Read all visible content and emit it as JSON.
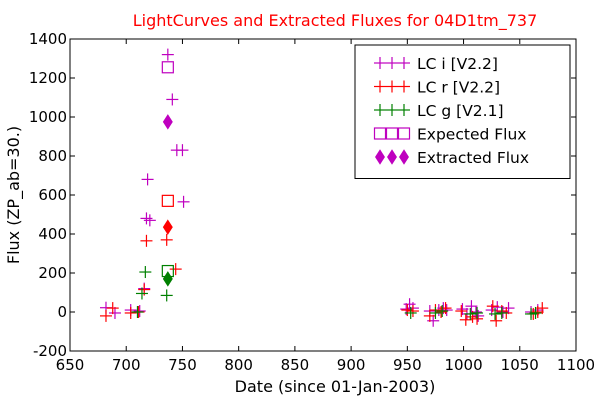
{
  "chart_data": {
    "type": "scatter",
    "title": "LightCurves and Extracted Fluxes for 04D1tm_737",
    "title_color": "#ff0000",
    "xlabel": "Date (since 01-Jan-2003)",
    "ylabel": "Flux (ZP_ab=30.)",
    "xlim": [
      650,
      1100
    ],
    "ylim": [
      -200,
      1400
    ],
    "x_ticks": [
      650,
      700,
      750,
      800,
      850,
      900,
      950,
      1000,
      1050,
      1100
    ],
    "y_ticks": [
      -200,
      0,
      200,
      400,
      600,
      800,
      1000,
      1200,
      1400
    ],
    "grid": false,
    "legend_position": "top-right",
    "series": [
      {
        "name": "LC i [V2.2]",
        "marker": "plus",
        "color": "#bf00bf",
        "points": [
          [
            682,
            22
          ],
          [
            690,
            -5
          ],
          [
            704,
            10
          ],
          [
            712,
            5
          ],
          [
            716,
            120
          ],
          [
            718,
            480
          ],
          [
            719,
            680
          ],
          [
            721,
            470
          ],
          [
            737,
            1320
          ],
          [
            741,
            1090
          ],
          [
            745,
            830
          ],
          [
            750,
            830
          ],
          [
            751,
            565
          ],
          [
            949,
            15
          ],
          [
            952,
            40
          ],
          [
            955,
            20
          ],
          [
            970,
            5
          ],
          [
            973,
            -45
          ],
          [
            978,
            10
          ],
          [
            982,
            20
          ],
          [
            985,
            10
          ],
          [
            999,
            15
          ],
          [
            1003,
            -10
          ],
          [
            1007,
            30
          ],
          [
            1011,
            0
          ],
          [
            1013,
            -20
          ],
          [
            1025,
            10
          ],
          [
            1030,
            25
          ],
          [
            1035,
            0
          ],
          [
            1040,
            20
          ],
          [
            1060,
            0
          ],
          [
            1066,
            10
          ]
        ]
      },
      {
        "name": "LC r [V2.2]",
        "marker": "plus",
        "color": "#ff0000",
        "points": [
          [
            682,
            -20
          ],
          [
            688,
            20
          ],
          [
            704,
            -5
          ],
          [
            711,
            0
          ],
          [
            716,
            115
          ],
          [
            718,
            365
          ],
          [
            736,
            370
          ],
          [
            744,
            220
          ],
          [
            950,
            10
          ],
          [
            955,
            5
          ],
          [
            970,
            -20
          ],
          [
            975,
            10
          ],
          [
            980,
            0
          ],
          [
            984,
            20
          ],
          [
            998,
            5
          ],
          [
            1002,
            -40
          ],
          [
            1008,
            -25
          ],
          [
            1012,
            -35
          ],
          [
            1026,
            30
          ],
          [
            1029,
            -45
          ],
          [
            1034,
            5
          ],
          [
            1038,
            -5
          ],
          [
            1062,
            -10
          ],
          [
            1066,
            0
          ],
          [
            1070,
            20
          ]
        ]
      },
      {
        "name": "LC g [V2.1]",
        "marker": "plus",
        "color": "#008000",
        "points": [
          [
            710,
            0
          ],
          [
            714,
            95
          ],
          [
            717,
            205
          ],
          [
            736,
            85
          ],
          [
            953,
            -5
          ],
          [
            975,
            -5
          ],
          [
            981,
            5
          ],
          [
            1006,
            -10
          ],
          [
            1012,
            -5
          ],
          [
            1028,
            -10
          ],
          [
            1034,
            -5
          ],
          [
            1060,
            -10
          ],
          [
            1064,
            -5
          ]
        ]
      },
      {
        "name": "Expected Flux",
        "marker": "open-square",
        "points_by_color": [
          {
            "color": "#bf00bf",
            "points": [
              [
                737,
                1255
              ]
            ]
          },
          {
            "color": "#ff0000",
            "points": [
              [
                737,
                570
              ]
            ]
          },
          {
            "color": "#008000",
            "points": [
              [
                737,
                210
              ]
            ]
          }
        ]
      },
      {
        "name": "Extracted Flux",
        "marker": "filled-diamond",
        "points_by_color": [
          {
            "color": "#bf00bf",
            "points": [
              [
                737,
                975
              ]
            ]
          },
          {
            "color": "#ff0000",
            "points": [
              [
                737,
                435
              ]
            ]
          },
          {
            "color": "#008000",
            "points": [
              [
                737,
                170
              ]
            ]
          }
        ]
      }
    ],
    "legend": [
      {
        "label": "LC i [V2.2]",
        "marker": "plus",
        "colors": [
          "#bf00bf",
          "#bf00bf",
          "#bf00bf"
        ]
      },
      {
        "label": "LC r [V2.2]",
        "marker": "plus",
        "colors": [
          "#ff0000",
          "#ff0000",
          "#ff0000"
        ]
      },
      {
        "label": "LC g [V2.1]",
        "marker": "plus",
        "colors": [
          "#008000",
          "#008000",
          "#008000"
        ]
      },
      {
        "label": "Expected Flux",
        "marker": "open-square",
        "colors": [
          "#bf00bf",
          "#bf00bf",
          "#bf00bf"
        ]
      },
      {
        "label": "Extracted Flux",
        "marker": "filled-diamond",
        "colors": [
          "#bf00bf",
          "#bf00bf",
          "#bf00bf"
        ]
      }
    ]
  }
}
